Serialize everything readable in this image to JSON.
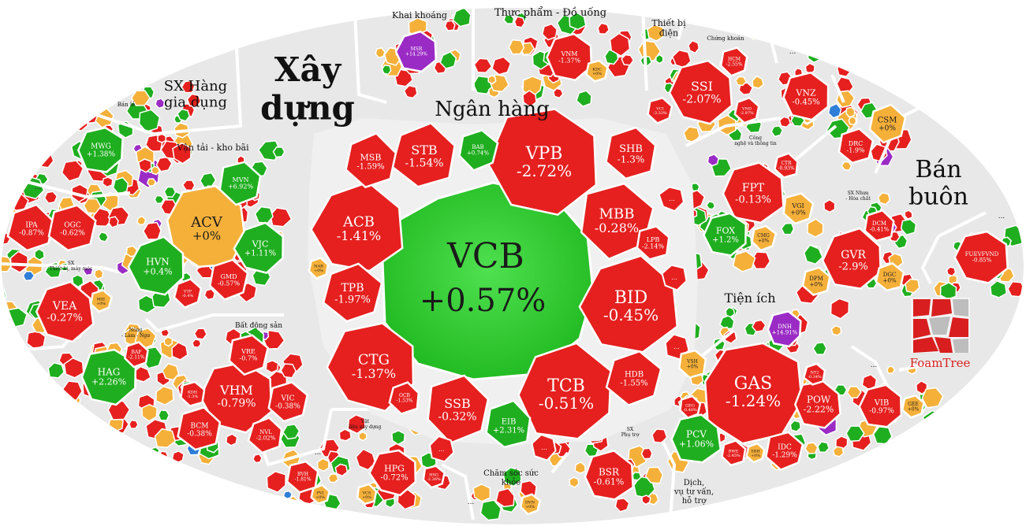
{
  "colors": {
    "red": "#e5201f",
    "green": "#1fae1f",
    "amber": "#f5b03a",
    "purple": "#9a2bc4",
    "blue": "#2e7ed8",
    "gray": "#ececec",
    "bright_green": "#36d03a"
  },
  "sector_labels": {
    "xay_dung": "Xây dựng",
    "ngan_hang": "Ngân hàng",
    "sx_hang_gia_dung": "SX Hàng gia dụng",
    "khai_khoang": "Khai khoáng",
    "thuc_pham": "Thực phẩm - Đồ uống",
    "thiet_bi_dien": "Thiết bị điện",
    "chung_khoan": "Chứng khoán",
    "ban_le": "Bán lẻ",
    "van_tai": "Vận tải - kho bãi",
    "cong_nghe": "Công nghệ và thông tin",
    "ban_buon": "Bán buôn",
    "sx_nhua": "SX Nhựa - Hóa chất",
    "tien_ich": "Tiện ích",
    "sx_thiet_bi": "SX Thiết bị, máy móc",
    "nong_lam": "Nông - Lâm - Ngư",
    "bat_dong_san": "Bất động sản",
    "vat_lieu": "Vật liệu xây dựng",
    "cham_soc": "Chăm sóc sức khỏe",
    "sx_phu_tro": "SX Phụ trợ",
    "dich_vu": "Dịch vụ tư vấn, hỗ trợ",
    "dots": "..."
  },
  "stocks": [
    {
      "id": "VCB",
      "t": "VCB",
      "c": "+0.57%",
      "color": "bright_green"
    },
    {
      "id": "VPB",
      "t": "VPB",
      "c": "-2.72%",
      "color": "red"
    },
    {
      "id": "ACB",
      "t": "ACB",
      "c": "-1.41%",
      "color": "red"
    },
    {
      "id": "BID",
      "t": "BID",
      "c": "-0.45%",
      "color": "red"
    },
    {
      "id": "TCB",
      "t": "TCB",
      "c": "-0.51%",
      "color": "red"
    },
    {
      "id": "CTG",
      "t": "CTG",
      "c": "-1.37%",
      "color": "red"
    },
    {
      "id": "MBB",
      "t": "MBB",
      "c": "-0.28%",
      "color": "red"
    },
    {
      "id": "STB",
      "t": "STB",
      "c": "-1.54%",
      "color": "red"
    },
    {
      "id": "MSB",
      "t": "MSB",
      "c": "-1.59%",
      "color": "red"
    },
    {
      "id": "TPB",
      "t": "TPB",
      "c": "-1.97%",
      "color": "red"
    },
    {
      "id": "SSB",
      "t": "SSB",
      "c": "-0.32%",
      "color": "red"
    },
    {
      "id": "SHB",
      "t": "SHB",
      "c": "-1.3%",
      "color": "red"
    },
    {
      "id": "HDB",
      "t": "HDB",
      "c": "-1.55%",
      "color": "red"
    },
    {
      "id": "LPB",
      "t": "LPB",
      "c": "-2.14%",
      "color": "red"
    },
    {
      "id": "EIB",
      "t": "EIB",
      "c": "+2.31%",
      "color": "green"
    },
    {
      "id": "BAB",
      "t": "BAB",
      "c": "+0.74%",
      "color": "green"
    },
    {
      "id": "NAB",
      "t": "NAB",
      "c": "+0%",
      "color": "amber"
    },
    {
      "id": "OCB",
      "t": "OCB",
      "c": "-1.53%",
      "color": "red"
    },
    {
      "id": "ACV",
      "t": "ACV",
      "c": "+0%",
      "color": "amber"
    },
    {
      "id": "HVN",
      "t": "HVN",
      "c": "+0.4%",
      "color": "green"
    },
    {
      "id": "VJC",
      "t": "VJC",
      "c": "+1.11%",
      "color": "green"
    },
    {
      "id": "MVN",
      "t": "MVN",
      "c": "+6.92%",
      "color": "green"
    },
    {
      "id": "GMD",
      "t": "GMD",
      "c": "-0.57%",
      "color": "red"
    },
    {
      "id": "VTP",
      "t": "VTP",
      "c": "-0.4%",
      "color": "red"
    },
    {
      "id": "MWG",
      "t": "MWG",
      "c": "+1.38%",
      "color": "green"
    },
    {
      "id": "IPA",
      "t": "IPA",
      "c": "-0.87%",
      "color": "red"
    },
    {
      "id": "OGC",
      "t": "OGC",
      "c": "-0.62%",
      "color": "red"
    },
    {
      "id": "VEA",
      "t": "VEA",
      "c": "-0.27%",
      "color": "red"
    },
    {
      "id": "MIE",
      "t": "MIE",
      "c": "+0%",
      "color": "amber"
    },
    {
      "id": "HAG",
      "t": "HAG",
      "c": "+2.26%",
      "color": "green"
    },
    {
      "id": "BAF",
      "t": "BAF",
      "c": "-2.11%",
      "color": "red"
    },
    {
      "id": "VHM",
      "t": "VHM",
      "c": "-0.79%",
      "color": "red"
    },
    {
      "id": "VRE",
      "t": "VRE",
      "c": "-0.7%",
      "color": "red"
    },
    {
      "id": "VIC",
      "t": "VIC",
      "c": "-0.38%",
      "color": "red"
    },
    {
      "id": "BCM",
      "t": "BCM",
      "c": "-0.38%",
      "color": "red"
    },
    {
      "id": "NVL",
      "t": "NVL",
      "c": "-2.02%",
      "color": "red"
    },
    {
      "id": "KDH",
      "t": "KDH",
      "c": "-1.3%",
      "color": "red"
    },
    {
      "id": "BVH",
      "t": "BVH",
      "c": "-1.81%",
      "color": "red"
    },
    {
      "id": "PVI",
      "t": "PVI",
      "c": "+0%",
      "color": "amber"
    },
    {
      "id": "HPG",
      "t": "HPG",
      "c": "-0.72%",
      "color": "red"
    },
    {
      "id": "VCS",
      "t": "VCS",
      "c": "+0%",
      "color": "amber"
    },
    {
      "id": "HSG",
      "t": "HSG",
      "c": "-2.36%",
      "color": "red"
    },
    {
      "id": "DVN",
      "t": "DVN",
      "c": "+0%",
      "color": "amber"
    },
    {
      "id": "BSR",
      "t": "BSR",
      "c": "-0.61%",
      "color": "red"
    },
    {
      "id": "GAS",
      "t": "GAS",
      "c": "-1.24%",
      "color": "red"
    },
    {
      "id": "POW",
      "t": "POW",
      "c": "-2.22%",
      "color": "red"
    },
    {
      "id": "PCV",
      "t": "PCV",
      "c": "+1.06%",
      "color": "green"
    },
    {
      "id": "IDC",
      "t": "IDC",
      "c": "-1.29%",
      "color": "red"
    },
    {
      "id": "DNH",
      "t": "DNH",
      "c": "+14.91%",
      "color": "purple"
    },
    {
      "id": "VSH",
      "t": "VSH",
      "c": "+0%",
      "color": "amber"
    },
    {
      "id": "NT2",
      "t": "NT2",
      "c": "-0.34%",
      "color": "red"
    },
    {
      "id": "GEG",
      "t": "GEG",
      "c": "-0.46%",
      "color": "red"
    },
    {
      "id": "BWE",
      "t": "BWE",
      "c": "-2.45%",
      "color": "red"
    },
    {
      "id": "SBH",
      "t": "SBH",
      "c": "+0%",
      "color": "amber"
    },
    {
      "id": "VIB",
      "t": "VIB",
      "c": "-0.97%",
      "color": "red"
    },
    {
      "id": "GEE",
      "t": "GEE",
      "c": "+0%",
      "color": "amber"
    },
    {
      "id": "FPT",
      "t": "FPT",
      "c": "-0.13%",
      "color": "red"
    },
    {
      "id": "FOX",
      "t": "FOX",
      "c": "+1.2%",
      "color": "green"
    },
    {
      "id": "VGI",
      "t": "VGI",
      "c": "+0%",
      "color": "amber"
    },
    {
      "id": "CMG",
      "t": "CMG",
      "c": "+0%",
      "color": "amber"
    },
    {
      "id": "CTR",
      "t": "CTR",
      "c": "-0.93%",
      "color": "red"
    },
    {
      "id": "SSI",
      "t": "SSI",
      "c": "-2.07%",
      "color": "red"
    },
    {
      "id": "HCM",
      "t": "HCM",
      "c": "-2.55%",
      "color": "red"
    },
    {
      "id": "VCI",
      "t": "VCI",
      "c": "-3.33%",
      "color": "red"
    },
    {
      "id": "VND",
      "t": "VND",
      "c": "-2.97%",
      "color": "red"
    },
    {
      "id": "VNZ",
      "t": "VNZ",
      "c": "-0.45%",
      "color": "red"
    },
    {
      "id": "DRC",
      "t": "DRC",
      "c": "-1.9%",
      "color": "red"
    },
    {
      "id": "CSM",
      "t": "CSM",
      "c": "+0%",
      "color": "amber"
    },
    {
      "id": "GVR",
      "t": "GVR",
      "c": "-2.9%",
      "color": "red"
    },
    {
      "id": "DCM",
      "t": "DCM",
      "c": "-0.41%",
      "color": "red"
    },
    {
      "id": "DGC",
      "t": "DGC",
      "c": "+0%",
      "color": "amber"
    },
    {
      "id": "DPM",
      "t": "DPM",
      "c": "+0%",
      "color": "amber"
    },
    {
      "id": "FUEVFVND",
      "t": "FUEVFVND",
      "c": "-0.85%",
      "color": "red"
    },
    {
      "id": "MSR",
      "t": "MSR",
      "c": "+14.29%",
      "color": "purple"
    },
    {
      "id": "VNM",
      "t": "VNM",
      "c": "-1.37%",
      "color": "red"
    },
    {
      "id": "KDC",
      "t": "KDC",
      "c": "+0%",
      "color": "amber"
    }
  ],
  "logo": {
    "text": "FoamTree"
  }
}
